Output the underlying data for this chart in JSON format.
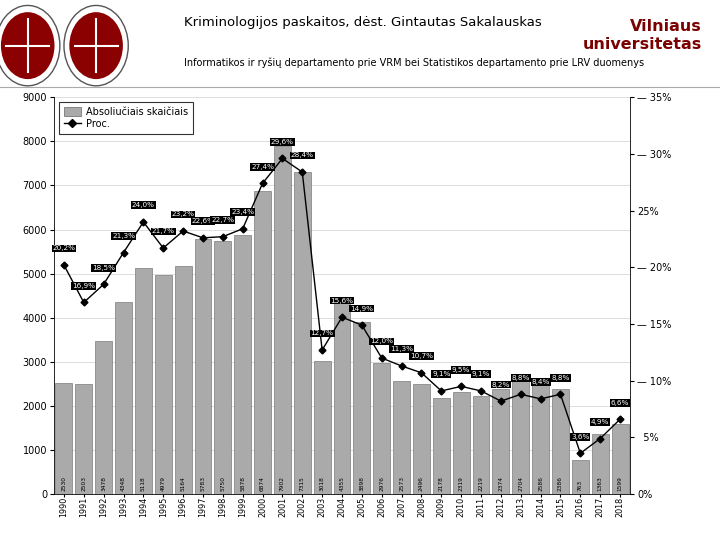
{
  "years": [
    "1990",
    "1991",
    "1992",
    "1993",
    "1994",
    "1995",
    "1996",
    "1997",
    "1998",
    "1999",
    "2000",
    "2001",
    "2002",
    "2003",
    "2004",
    "2005",
    "2006",
    "2007",
    "2008",
    "2009",
    "2010",
    "2011",
    "2012",
    "2013",
    "2014",
    "2015",
    "2016",
    "2017",
    "2018"
  ],
  "bar_values": [
    2530,
    2503,
    3478,
    4348,
    5118,
    4979,
    5164,
    5783,
    5750,
    5878,
    6874,
    7902,
    7315,
    3018,
    4355,
    3898,
    2976,
    2573,
    2496,
    2178,
    2319,
    2219,
    2374,
    2704,
    2586,
    2386,
    763,
    1363,
    1599
  ],
  "pct_values": [
    20.2,
    16.9,
    18.5,
    21.3,
    24.0,
    21.7,
    23.2,
    22.6,
    22.7,
    23.4,
    27.4,
    29.6,
    28.4,
    12.7,
    15.6,
    14.9,
    12.0,
    11.3,
    10.7,
    9.1,
    9.5,
    9.1,
    8.2,
    8.8,
    8.4,
    8.8,
    3.6,
    4.9,
    6.6
  ],
  "bar_color": "#aaaaaa",
  "bar_edge_color": "#666666",
  "line_color": "#000000",
  "ylim_left": [
    0,
    9000
  ],
  "ylim_right": [
    0,
    35
  ],
  "yticks_left": [
    0,
    1000,
    2000,
    3000,
    4000,
    5000,
    6000,
    7000,
    8000,
    9000
  ],
  "yticks_right": [
    0,
    5,
    10,
    15,
    20,
    25,
    30,
    35
  ],
  "ytick_labels_right": [
    "0%",
    "  5%",
    "— 10%",
    "— 15%",
    "— 20%",
    "25%",
    "— 30%",
    "— 35%"
  ],
  "legend_abs": "Absoliučiais skaičiais",
  "legend_pct": "Proc.",
  "bg_color": "#ffffff",
  "header_title": "Kriminologijos paskaitos, dėst. Gintautas Sakalauskas",
  "header_subtitle": "Informatikos ir ryšių departamento prie VRM bei Statistikos departamento prie LRV duomenys",
  "vilnius_text": "Vilniaus\nuniversitetas",
  "vilnius_color": "#7b0000",
  "pct_labels": [
    "20,2%",
    "16,9%",
    "18,5%",
    "21,3%",
    "24,0%",
    "21,7%",
    "23,2%",
    "22,6%",
    "22,7%",
    "23,4%",
    "27,4%",
    "29,6%",
    "28,4%",
    "12,7%",
    "15,6%",
    "14,9%",
    "12,0%",
    "11,3%",
    "10,7%",
    "9,1%",
    "9,5%",
    "9,1%",
    "8,2%",
    "8,8%",
    "8,4%",
    "8,8%",
    "3,6%",
    "4,9%",
    "6,6%"
  ],
  "bar_labels": [
    "2530",
    "2503",
    "3478",
    "4348",
    "5118",
    "4979",
    "5164",
    "5783",
    "5750",
    "5878",
    "6874",
    "7902",
    "7315",
    "3018",
    "4355",
    "3898",
    "2976",
    "2573",
    "2496",
    "2178",
    "2319",
    "2219",
    "2374",
    "2704",
    "2586",
    "2386",
    "763",
    "1363",
    "1599"
  ]
}
